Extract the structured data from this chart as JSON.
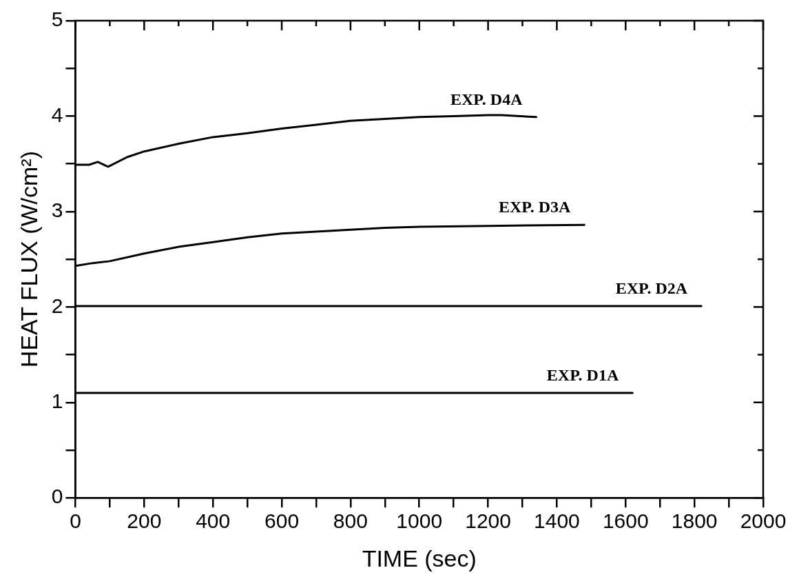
{
  "chart_data": {
    "type": "line",
    "xlabel": "TIME (sec)",
    "ylabel": "HEAT FLUX (W/cm²)",
    "xlim": [
      0,
      2000
    ],
    "ylim": [
      0,
      5
    ],
    "xticks": [
      0,
      {
        "value": 100,
        "label": null
      },
      200,
      {
        "value": 300,
        "label": null
      },
      400,
      {
        "value": 500,
        "label": null
      },
      600,
      {
        "value": 700,
        "label": null
      },
      800,
      {
        "value": 900,
        "label": null
      },
      1000,
      {
        "value": 1100,
        "label": null
      },
      1200,
      {
        "value": 1300,
        "label": null
      },
      1400,
      {
        "value": 1500,
        "label": null
      },
      1600,
      {
        "value": 1700,
        "label": null
      },
      1800,
      {
        "value": 1900,
        "label": null
      },
      2000
    ],
    "yticks": [
      0,
      {
        "value": 0.5,
        "label": null
      },
      1,
      {
        "value": 1.5,
        "label": null
      },
      2,
      {
        "value": 2.5,
        "label": null
      },
      3,
      {
        "value": 3.5,
        "label": null
      },
      4,
      {
        "value": 4.5,
        "label": null
      },
      5
    ],
    "grid": false,
    "legend": false,
    "marker": "none",
    "line_style": "solid",
    "series": [
      {
        "name": "EXP. D4A",
        "color": "#000000",
        "x": [
          0,
          40,
          65,
          95,
          150,
          200,
          300,
          400,
          500,
          600,
          700,
          800,
          900,
          1000,
          1100,
          1200,
          1240,
          1340
        ],
        "values": [
          3.49,
          3.49,
          3.52,
          3.47,
          3.57,
          3.63,
          3.71,
          3.78,
          3.82,
          3.87,
          3.91,
          3.95,
          3.97,
          3.99,
          4.0,
          4.01,
          4.01,
          3.99
        ]
      },
      {
        "name": "EXP. D3A",
        "color": "#000000",
        "x": [
          0,
          50,
          100,
          200,
          300,
          400,
          500,
          600,
          700,
          800,
          900,
          1000,
          1200,
          1480
        ],
        "values": [
          2.43,
          2.46,
          2.48,
          2.56,
          2.63,
          2.68,
          2.73,
          2.77,
          2.79,
          2.81,
          2.83,
          2.84,
          2.85,
          2.86
        ]
      },
      {
        "name": "EXP. D2A",
        "color": "#000000",
        "x": [
          0,
          1820
        ],
        "values": [
          2.01,
          2.01
        ]
      },
      {
        "name": "EXP. D1A",
        "color": "#000000",
        "x": [
          0,
          1620
        ],
        "values": [
          1.1,
          1.1
        ]
      }
    ]
  }
}
